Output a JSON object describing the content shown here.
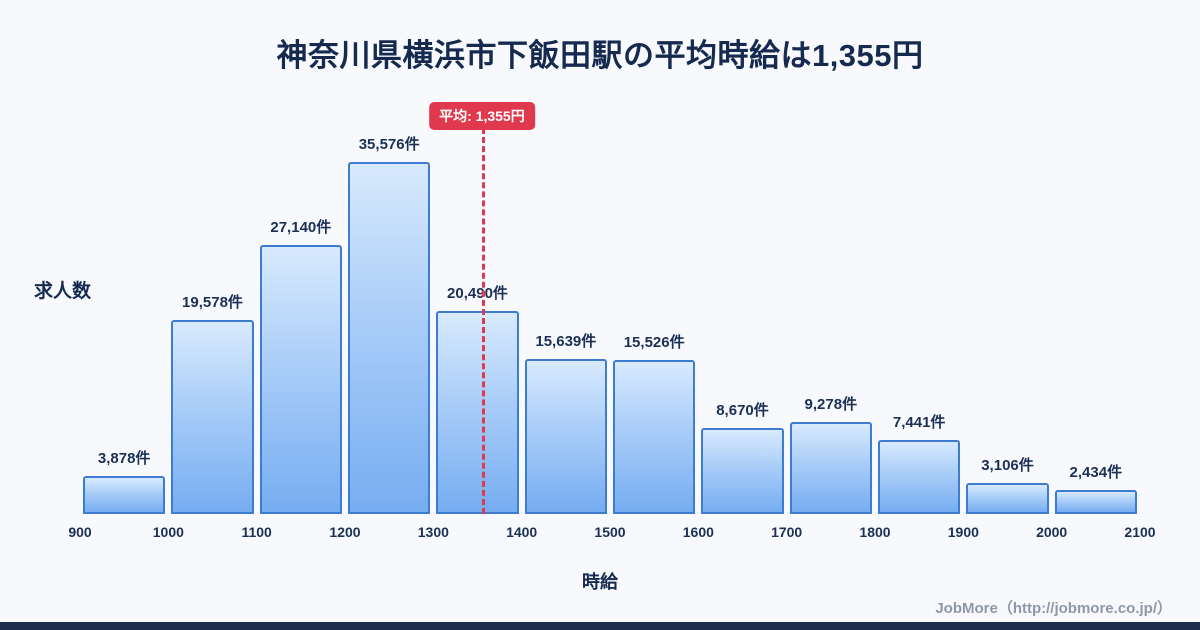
{
  "title": "神奈川県横浜市下飯田駅の平均時給は1,355円",
  "average": {
    "label": "平均: 1,355円",
    "value": 1355
  },
  "axes": {
    "y_label": "求人数",
    "x_label": "時給"
  },
  "footer": {
    "credit": "JobMore（http://jobmore.co.jp/）"
  },
  "colors": {
    "title": "#16294f",
    "bar_border": "#3d7cd0",
    "bar_fill_top": "#d8eafd",
    "bar_fill_bottom": "#76adf1",
    "average_red": "#e0394e",
    "background": "#f7f9fd",
    "footer_gray": "#8f98a8",
    "bottom_bar_navy": "#1e2c4f"
  },
  "chart_data": {
    "type": "bar",
    "title": "神奈川県横浜市下飯田駅の平均時給は1,355円",
    "xlabel": "時給",
    "ylabel": "求人数",
    "x_range": [
      900,
      2100
    ],
    "x_ticks": [
      900,
      1000,
      1100,
      1200,
      1300,
      1400,
      1500,
      1600,
      1700,
      1800,
      1900,
      2000,
      2100
    ],
    "average_line_x": 1355,
    "grid": false,
    "legend": false,
    "bins": [
      {
        "range": [
          900,
          1000
        ],
        "value": 3878,
        "label": "3,878件"
      },
      {
        "range": [
          1000,
          1100
        ],
        "value": 19578,
        "label": "19,578件"
      },
      {
        "range": [
          1100,
          1200
        ],
        "value": 27140,
        "label": "27,140件"
      },
      {
        "range": [
          1200,
          1300
        ],
        "value": 35576,
        "label": "35,576件"
      },
      {
        "range": [
          1300,
          1400
        ],
        "value": 20490,
        "label": "20,490件"
      },
      {
        "range": [
          1400,
          1500
        ],
        "value": 15639,
        "label": "15,639件"
      },
      {
        "range": [
          1500,
          1600
        ],
        "value": 15526,
        "label": "15,526件"
      },
      {
        "range": [
          1600,
          1700
        ],
        "value": 8670,
        "label": "8,670件"
      },
      {
        "range": [
          1700,
          1800
        ],
        "value": 9278,
        "label": "9,278件"
      },
      {
        "range": [
          1800,
          1900
        ],
        "value": 7441,
        "label": "7,441件"
      },
      {
        "range": [
          1900,
          2000
        ],
        "value": 3106,
        "label": "3,106件"
      },
      {
        "range": [
          2000,
          2100
        ],
        "value": 2434,
        "label": "2,434件"
      }
    ]
  }
}
